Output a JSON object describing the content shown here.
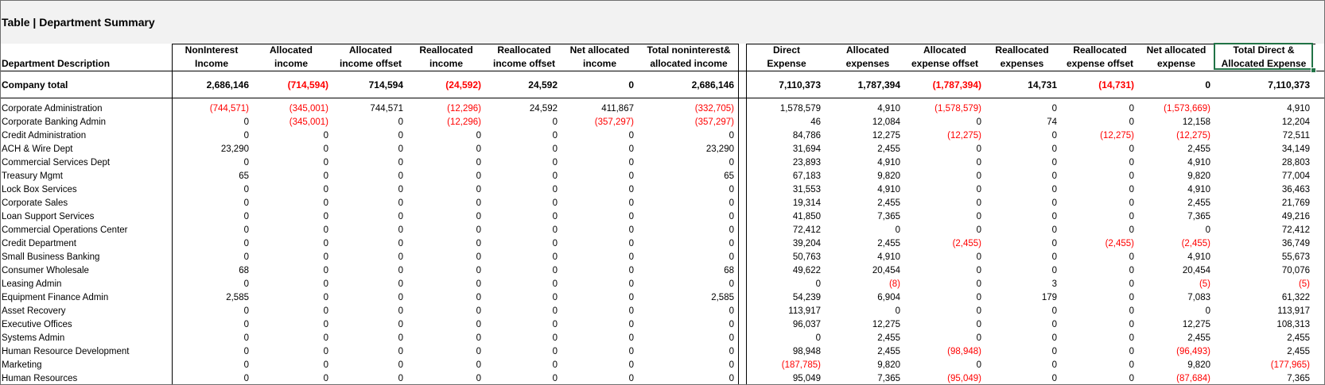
{
  "title": "Table  |  Department Summary",
  "colors": {
    "negative": "#ff0000",
    "selection": "#217346"
  },
  "headers": {
    "description": "Department Description",
    "columns": [
      [
        "NonInterest",
        "Income"
      ],
      [
        "Allocated",
        "income"
      ],
      [
        "Allocated",
        "income offset"
      ],
      [
        "Reallocated",
        "income"
      ],
      [
        "Reallocated",
        "income offset"
      ],
      [
        "Net allocated",
        "income"
      ],
      [
        "Total noninterest&",
        "allocated income"
      ],
      [
        "Direct",
        "Expense"
      ],
      [
        "Allocated",
        "expenses"
      ],
      [
        "Allocated",
        "expense offset"
      ],
      [
        "Reallocated",
        "expenses"
      ],
      [
        "Reallocated",
        "expense offset"
      ],
      [
        "Net allocated",
        "expense"
      ],
      [
        "Total Direct &",
        "Allocated Expense"
      ]
    ]
  },
  "total_row": {
    "label": "Company total",
    "values": [
      "2,686,146",
      "(714,594)",
      "714,594",
      "(24,592)",
      "24,592",
      "0",
      "2,686,146",
      "7,110,373",
      "1,787,394",
      "(1,787,394)",
      "14,731",
      "(14,731)",
      "0",
      "7,110,373"
    ]
  },
  "rows": [
    {
      "label": "Corporate Administration",
      "values": [
        "(744,571)",
        "(345,001)",
        "744,571",
        "(12,296)",
        "24,592",
        "411,867",
        "(332,705)",
        "1,578,579",
        "4,910",
        "(1,578,579)",
        "0",
        "0",
        "(1,573,669)",
        "4,910"
      ]
    },
    {
      "label": "Corporate Banking Admin",
      "values": [
        "0",
        "(345,001)",
        "0",
        "(12,296)",
        "0",
        "(357,297)",
        "(357,297)",
        "46",
        "12,084",
        "0",
        "74",
        "0",
        "12,158",
        "12,204"
      ]
    },
    {
      "label": "Credit Administration",
      "values": [
        "0",
        "0",
        "0",
        "0",
        "0",
        "0",
        "0",
        "84,786",
        "12,275",
        "(12,275)",
        "0",
        "(12,275)",
        "(12,275)",
        "72,511"
      ]
    },
    {
      "label": "ACH & Wire Dept",
      "values": [
        "23,290",
        "0",
        "0",
        "0",
        "0",
        "0",
        "23,290",
        "31,694",
        "2,455",
        "0",
        "0",
        "0",
        "2,455",
        "34,149"
      ]
    },
    {
      "label": "Commercial Services Dept",
      "values": [
        "0",
        "0",
        "0",
        "0",
        "0",
        "0",
        "0",
        "23,893",
        "4,910",
        "0",
        "0",
        "0",
        "4,910",
        "28,803"
      ]
    },
    {
      "label": "Treasury Mgmt",
      "values": [
        "65",
        "0",
        "0",
        "0",
        "0",
        "0",
        "65",
        "67,183",
        "9,820",
        "0",
        "0",
        "0",
        "9,820",
        "77,004"
      ]
    },
    {
      "label": "Lock Box Services",
      "values": [
        "0",
        "0",
        "0",
        "0",
        "0",
        "0",
        "0",
        "31,553",
        "4,910",
        "0",
        "0",
        "0",
        "4,910",
        "36,463"
      ]
    },
    {
      "label": "Corporate Sales",
      "values": [
        "0",
        "0",
        "0",
        "0",
        "0",
        "0",
        "0",
        "19,314",
        "2,455",
        "0",
        "0",
        "0",
        "2,455",
        "21,769"
      ]
    },
    {
      "label": "Loan Support Services",
      "values": [
        "0",
        "0",
        "0",
        "0",
        "0",
        "0",
        "0",
        "41,850",
        "7,365",
        "0",
        "0",
        "0",
        "7,365",
        "49,216"
      ]
    },
    {
      "label": "Commercial Operations Center",
      "values": [
        "0",
        "0",
        "0",
        "0",
        "0",
        "0",
        "0",
        "72,412",
        "0",
        "0",
        "0",
        "0",
        "0",
        "72,412"
      ]
    },
    {
      "label": "Credit Department",
      "values": [
        "0",
        "0",
        "0",
        "0",
        "0",
        "0",
        "0",
        "39,204",
        "2,455",
        "(2,455)",
        "0",
        "(2,455)",
        "(2,455)",
        "36,749"
      ]
    },
    {
      "label": "Small Business Banking",
      "values": [
        "0",
        "0",
        "0",
        "0",
        "0",
        "0",
        "0",
        "50,763",
        "4,910",
        "0",
        "0",
        "0",
        "4,910",
        "55,673"
      ]
    },
    {
      "label": "Consumer Wholesale",
      "values": [
        "68",
        "0",
        "0",
        "0",
        "0",
        "0",
        "68",
        "49,622",
        "20,454",
        "0",
        "0",
        "0",
        "20,454",
        "70,076"
      ]
    },
    {
      "label": "Leasing Admin",
      "values": [
        "0",
        "0",
        "0",
        "0",
        "0",
        "0",
        "0",
        "0",
        "(8)",
        "0",
        "3",
        "0",
        "(5)",
        "(5)"
      ]
    },
    {
      "label": "Equipment Finance Admin",
      "values": [
        "2,585",
        "0",
        "0",
        "0",
        "0",
        "0",
        "2,585",
        "54,239",
        "6,904",
        "0",
        "179",
        "0",
        "7,083",
        "61,322"
      ]
    },
    {
      "label": "Asset Recovery",
      "values": [
        "0",
        "0",
        "0",
        "0",
        "0",
        "0",
        "0",
        "113,917",
        "0",
        "0",
        "0",
        "0",
        "0",
        "113,917"
      ]
    },
    {
      "label": "Executive Offices",
      "values": [
        "0",
        "0",
        "0",
        "0",
        "0",
        "0",
        "0",
        "96,037",
        "12,275",
        "0",
        "0",
        "0",
        "12,275",
        "108,313"
      ]
    },
    {
      "label": "Systems Admin",
      "values": [
        "0",
        "0",
        "0",
        "0",
        "0",
        "0",
        "0",
        "0",
        "2,455",
        "0",
        "0",
        "0",
        "2,455",
        "2,455"
      ]
    },
    {
      "label": "Human Resource Development",
      "values": [
        "0",
        "0",
        "0",
        "0",
        "0",
        "0",
        "0",
        "98,948",
        "2,455",
        "(98,948)",
        "0",
        "0",
        "(96,493)",
        "2,455"
      ]
    },
    {
      "label": "Marketing",
      "values": [
        "0",
        "0",
        "0",
        "0",
        "0",
        "0",
        "0",
        "(187,785)",
        "9,820",
        "0",
        "0",
        "0",
        "9,820",
        "(177,965)"
      ]
    },
    {
      "label": "Human Resources",
      "values": [
        "0",
        "0",
        "0",
        "0",
        "0",
        "0",
        "0",
        "95,049",
        "7,365",
        "(95,049)",
        "0",
        "0",
        "(87,684)",
        "7,365"
      ]
    }
  ]
}
